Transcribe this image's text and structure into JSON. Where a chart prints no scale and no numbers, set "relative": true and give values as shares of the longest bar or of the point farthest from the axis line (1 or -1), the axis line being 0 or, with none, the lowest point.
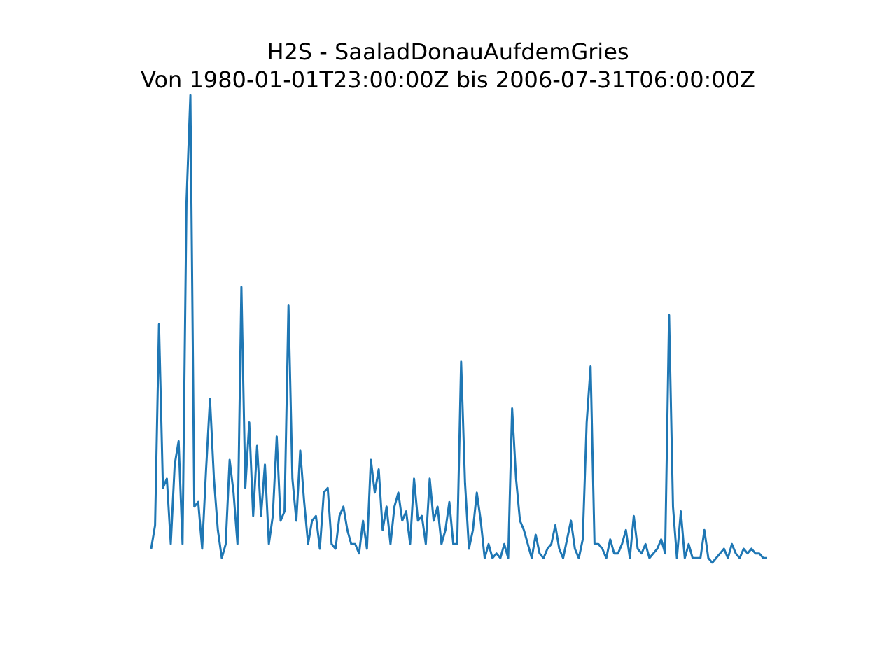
{
  "chart_data": {
    "type": "line",
    "title": "H2S - SaaladDonauAufdemGries",
    "subtitle": "Von 1980-01-01T23:00:00Z bis 2006-07-31T06:00:00Z",
    "relative": true,
    "marker": "none",
    "line_style": "solid",
    "categories": [
      null,
      null,
      null,
      null,
      null,
      null,
      null,
      null,
      null,
      null,
      null,
      null,
      null,
      null,
      null,
      null,
      null,
      null,
      null,
      null,
      null,
      null,
      null,
      null,
      null,
      null,
      null,
      null,
      null,
      null,
      null,
      null,
      null,
      null,
      null,
      null,
      null,
      null,
      null,
      null,
      null,
      null,
      null,
      null,
      null,
      null,
      null,
      null,
      null,
      null,
      null,
      null,
      null,
      null,
      null,
      null,
      null,
      null,
      null,
      null,
      null,
      null,
      null,
      null,
      null,
      null,
      null,
      null,
      null,
      null,
      null,
      null,
      null,
      null,
      null,
      null,
      null,
      null,
      null,
      null,
      null,
      null,
      null,
      null,
      null,
      null,
      null,
      null,
      null,
      null,
      null,
      null,
      null,
      null,
      null,
      null,
      null,
      null,
      null,
      null,
      null,
      null,
      null,
      null,
      null,
      null,
      null,
      null,
      null,
      null,
      null,
      null,
      null,
      null,
      null,
      null,
      null,
      null,
      null,
      null,
      null,
      null,
      null,
      null,
      null,
      null,
      null,
      null,
      null,
      null,
      null,
      null,
      null,
      null,
      null,
      null,
      null,
      null,
      null,
      null,
      null,
      null,
      null,
      null,
      null,
      null,
      null,
      null,
      null,
      null,
      null,
      null,
      null,
      null,
      null,
      null,
      null,
      null
    ],
    "series": [
      {
        "color": "#1f77b4",
        "values": [
          0.03,
          0.08,
          0.51,
          0.16,
          0.18,
          0.04,
          0.21,
          0.26,
          0.04,
          0.77,
          1,
          0.12,
          0.13,
          0.03,
          0.2,
          0.35,
          0.18,
          0.07,
          0.01,
          0.04,
          0.22,
          0.15,
          0.04,
          0.59,
          0.16,
          0.3,
          0.1,
          0.25,
          0.1,
          0.21,
          0.04,
          0.1,
          0.27,
          0.09,
          0.11,
          0.55,
          0.18,
          0.09,
          0.24,
          0.13,
          0.04,
          0.09,
          0.1,
          0.03,
          0.15,
          0.16,
          0.04,
          0.03,
          0.1,
          0.12,
          0.07,
          0.04,
          0.04,
          0.02,
          0.09,
          0.03,
          0.22,
          0.15,
          0.2,
          0.07,
          0.12,
          0.04,
          0.12,
          0.15,
          0.09,
          0.11,
          0.04,
          0.18,
          0.09,
          0.1,
          0.04,
          0.18,
          0.09,
          0.12,
          0.04,
          0.07,
          0.13,
          0.04,
          0.04,
          0.43,
          0.17,
          0.03,
          0.07,
          0.15,
          0.09,
          0.01,
          0.04,
          0.01,
          0.02,
          0.01,
          0.04,
          0.01,
          0.33,
          0.18,
          0.09,
          0.07,
          0.04,
          0.01,
          0.06,
          0.02,
          0.01,
          0.03,
          0.04,
          0.08,
          0.03,
          0.01,
          0.05,
          0.09,
          0.03,
          0.01,
          0.05,
          0.3,
          0.42,
          0.04,
          0.04,
          0.03,
          0.01,
          0.05,
          0.02,
          0.02,
          0.04,
          0.07,
          0.01,
          0.1,
          0.03,
          0.02,
          0.04,
          0.01,
          0.02,
          0.03,
          0.05,
          0.02,
          0.53,
          0.12,
          0.01,
          0.11,
          0.01,
          0.04,
          0.01,
          0.01,
          0.01,
          0.07,
          0.01,
          0,
          0.01,
          0.02,
          0.03,
          0.01,
          0.04,
          0.02,
          0.01,
          0.03,
          0.02,
          0.03,
          0.02,
          0.02,
          0.01,
          0.01
        ]
      }
    ]
  }
}
